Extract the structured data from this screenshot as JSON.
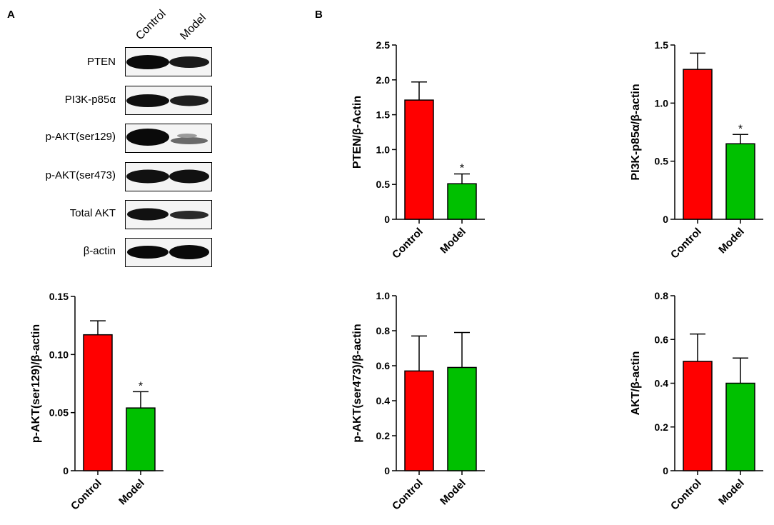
{
  "panels": {
    "a": "A",
    "b": "B"
  },
  "blot": {
    "lanes": [
      "Control",
      "Model"
    ],
    "rows": [
      {
        "label": "PTEN"
      },
      {
        "label": "PI3K-p85α"
      },
      {
        "label": "p-AKT(ser129)"
      },
      {
        "label": "p-AKT(ser473)"
      },
      {
        "label": "Total AKT"
      },
      {
        "label": "β-actin"
      }
    ]
  },
  "colors": {
    "control": "#ff0000",
    "model": "#00c000"
  },
  "chart_data": [
    {
      "type": "bar",
      "categories": [
        "Control",
        "Model"
      ],
      "values": [
        1.71,
        0.51
      ],
      "errors": [
        0.26,
        0.14
      ],
      "significance": [
        "",
        "*"
      ],
      "ylabel": "PTEN/β-Actin",
      "ylim": [
        0,
        2.5
      ],
      "yticks": [
        "0",
        "0.5",
        "1.0",
        "1.5",
        "2.0",
        "2.5"
      ],
      "ytick_values": [
        0,
        0.5,
        1.0,
        1.5,
        2.0,
        2.5
      ]
    },
    {
      "type": "bar",
      "categories": [
        "Control",
        "Model"
      ],
      "values": [
        1.29,
        0.65
      ],
      "errors": [
        0.14,
        0.08
      ],
      "significance": [
        "",
        "*"
      ],
      "ylabel": "PI3K-p85α/β-actin",
      "ylim": [
        0,
        1.5
      ],
      "yticks": [
        "0",
        "0.5",
        "1.0",
        "1.5"
      ],
      "ytick_values": [
        0,
        0.5,
        1.0,
        1.5
      ]
    },
    {
      "type": "bar",
      "categories": [
        "Control",
        "Model"
      ],
      "values": [
        0.117,
        0.054
      ],
      "errors": [
        0.012,
        0.014
      ],
      "significance": [
        "",
        "*"
      ],
      "ylabel": "p-AKT(ser129)/β-actin",
      "ylim": [
        0,
        0.15
      ],
      "yticks": [
        "0",
        "0.05",
        "0.10",
        "0.15"
      ],
      "ytick_values": [
        0,
        0.05,
        0.1,
        0.15
      ]
    },
    {
      "type": "bar",
      "categories": [
        "Control",
        "Model"
      ],
      "values": [
        0.57,
        0.59
      ],
      "errors": [
        0.2,
        0.2
      ],
      "significance": [
        "",
        ""
      ],
      "ylabel": "p-AKT(ser473)/β-actin",
      "ylim": [
        0,
        1.0
      ],
      "yticks": [
        "0",
        "0.2",
        "0.4",
        "0.6",
        "0.8",
        "1.0"
      ],
      "ytick_values": [
        0,
        0.2,
        0.4,
        0.6,
        0.8,
        1.0
      ]
    },
    {
      "type": "bar",
      "categories": [
        "Control",
        "Model"
      ],
      "values": [
        0.5,
        0.4
      ],
      "errors": [
        0.125,
        0.115
      ],
      "significance": [
        "",
        ""
      ],
      "ylabel": "AKT/β-actin",
      "ylim": [
        0,
        0.8
      ],
      "yticks": [
        "0",
        "0.2",
        "0.4",
        "0.6",
        "0.8"
      ],
      "ytick_values": [
        0,
        0.2,
        0.4,
        0.6,
        0.8
      ]
    }
  ]
}
